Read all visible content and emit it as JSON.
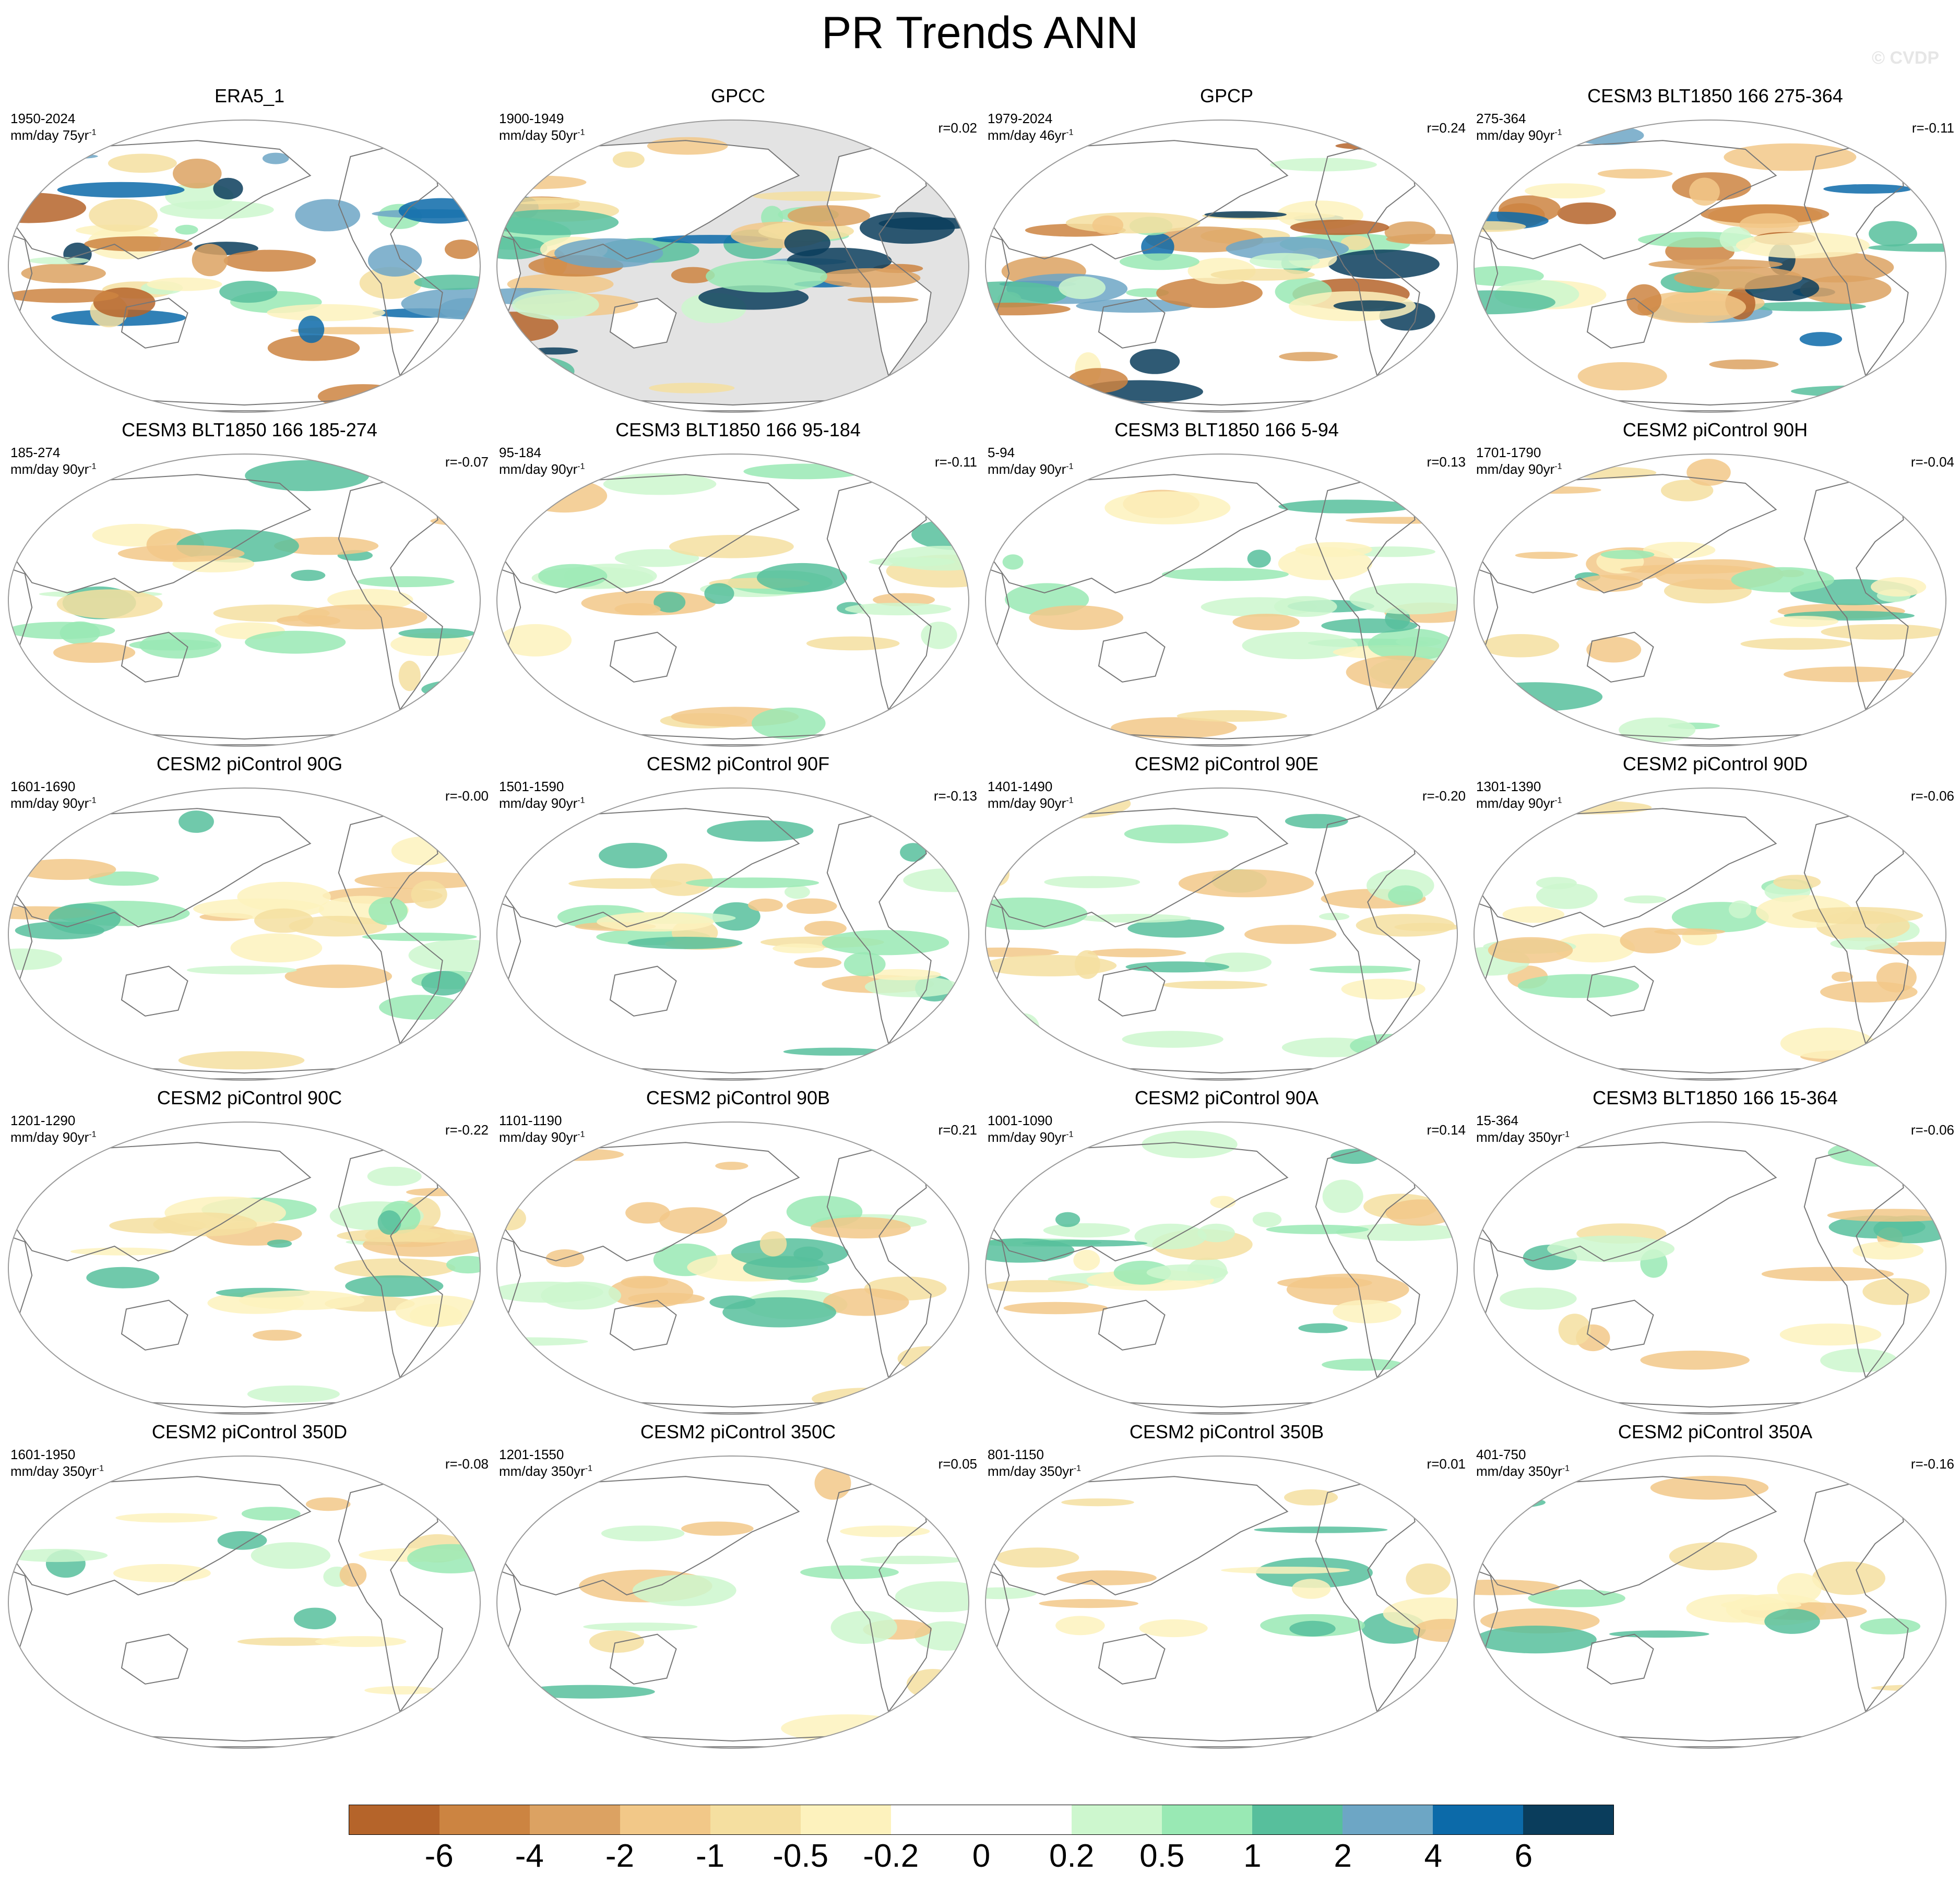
{
  "title": "PR Trends ANN",
  "watermark": "© CVDP",
  "units_base": "mm/day",
  "units_suffix": "yr",
  "units_sup": "-1",
  "colors": {
    "land": "#e3e3e3",
    "coast": "#777777",
    "frame": "#9a9a9a",
    "palette": [
      "#b5642a",
      "#cc8441",
      "#dca262",
      "#f2c888",
      "#f5dfa0",
      "#fdf2bd",
      "#ffffff",
      "#ffffff",
      "#cdf7ce",
      "#99e9b4",
      "#57bf9c",
      "#6da6c5",
      "#0c6aa9",
      "#0a3d5c"
    ]
  },
  "colorbar": {
    "labels": [
      "-6",
      "-4",
      "-2",
      "-1",
      "-0.5",
      "-0.2",
      "0",
      "0.2",
      "0.5",
      "1",
      "2",
      "4",
      "6"
    ]
  },
  "panels": [
    {
      "title": "ERA5_1",
      "period": "1950-2024",
      "years": "75",
      "r": ""
    },
    {
      "title": "GPCC",
      "period": "1900-1949",
      "years": "50",
      "r": "r=0.02"
    },
    {
      "title": "GPCP",
      "period": "1979-2024",
      "years": "46",
      "r": "r=0.24"
    },
    {
      "title": "CESM3 BLT1850 166 275-364",
      "period": "275-364",
      "years": "90",
      "r": "r=-0.11"
    },
    {
      "title": "CESM3 BLT1850 166 185-274",
      "period": "185-274",
      "years": "90",
      "r": "r=-0.07"
    },
    {
      "title": "CESM3 BLT1850 166 95-184",
      "period": "95-184",
      "years": "90",
      "r": "r=-0.11"
    },
    {
      "title": "CESM3 BLT1850 166 5-94",
      "period": "5-94",
      "years": "90",
      "r": "r=0.13"
    },
    {
      "title": "CESM2 piControl 90H",
      "period": "1701-1790",
      "years": "90",
      "r": "r=-0.04"
    },
    {
      "title": "CESM2 piControl 90G",
      "period": "1601-1690",
      "years": "90",
      "r": "r=-0.00"
    },
    {
      "title": "CESM2 piControl 90F",
      "period": "1501-1590",
      "years": "90",
      "r": "r=-0.13"
    },
    {
      "title": "CESM2 piControl 90E",
      "period": "1401-1490",
      "years": "90",
      "r": "r=-0.20"
    },
    {
      "title": "CESM2 piControl 90D",
      "period": "1301-1390",
      "years": "90",
      "r": "r=-0.06"
    },
    {
      "title": "CESM2 piControl 90C",
      "period": "1201-1290",
      "years": "90",
      "r": "r=-0.22"
    },
    {
      "title": "CESM2 piControl 90B",
      "period": "1101-1190",
      "years": "90",
      "r": "r=0.21"
    },
    {
      "title": "CESM2 piControl 90A",
      "period": "1001-1090",
      "years": "90",
      "r": "r=0.14"
    },
    {
      "title": "CESM3 BLT1850 166 15-364",
      "period": "15-364",
      "years": "350",
      "r": "r=-0.06"
    },
    {
      "title": "CESM2 piControl 350D",
      "period": "1601-1950",
      "years": "350",
      "r": "r=-0.08"
    },
    {
      "title": "CESM2 piControl 350C",
      "period": "1201-1550",
      "years": "350",
      "r": "r=0.05"
    },
    {
      "title": "CESM2 piControl 350B",
      "period": "801-1150",
      "years": "350",
      "r": "r=0.01"
    },
    {
      "title": "CESM2 piControl 350A",
      "period": "401-750",
      "years": "350",
      "r": "r=-0.16"
    }
  ]
}
